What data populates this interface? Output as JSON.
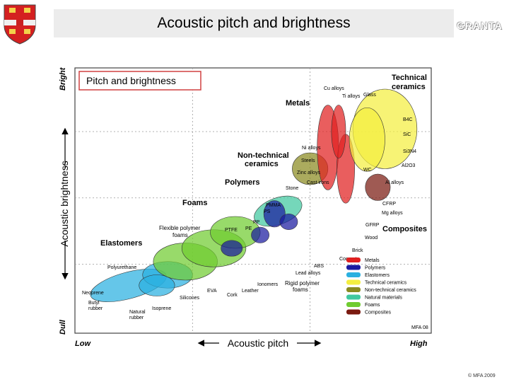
{
  "header": {
    "title": "Acoustic pitch and brightness",
    "logo_text": "GRANTA"
  },
  "footer": {
    "copyright": "© MFA 2009"
  },
  "chart_data": {
    "type": "bubble",
    "panel_title": "Pitch and brightness",
    "xlabel": "Acoustic pitch",
    "ylabel": "Acoustic brightness",
    "x_low": "Low",
    "x_high": "High",
    "y_low": "Dull",
    "y_high": "Bright",
    "version_tag": "MFA 08",
    "grid": true,
    "family_colors": {
      "Metals": "#e02020",
      "Polymers": "#1a1aa0",
      "Elastomers": "#2ab0e0",
      "Technical ceramics": "#f4ee40",
      "Non-technical ceramics": "#8a8a20",
      "Natural materials": "#40c8a0",
      "Foams": "#70cc30",
      "Composites": "#7a1a10"
    },
    "family_labels": [
      {
        "text": "Technical",
        "family": "Technical ceramics"
      },
      {
        "text": "ceramics",
        "family": "Technical ceramics"
      },
      {
        "text": "Metals",
        "family": "Metals"
      },
      {
        "text": "Non-technical",
        "family": "Non-technical ceramics"
      },
      {
        "text": "ceramics",
        "family": "Non-technical ceramics"
      },
      {
        "text": "Polymers",
        "family": "Polymers"
      },
      {
        "text": "Foams",
        "family": "Foams"
      },
      {
        "text": "Elastomers",
        "family": "Elastomers"
      },
      {
        "text": "Composites",
        "family": "Composites"
      }
    ],
    "material_labels": [
      "Cu alloys",
      "Ti alloys",
      "Glass",
      "B4C",
      "SiC",
      "Si3N4",
      "Al2O3",
      "Ni alloys",
      "Steels",
      "WC",
      "Zinc alloys",
      "Cast irons",
      "Al alloys",
      "Stone",
      "PMMA",
      "PS",
      "CFRP",
      "Mg alloys",
      "GFRP",
      "PP",
      "PE",
      "PTFE",
      "Wood",
      "Flexible polymer",
      "foams",
      "Brick",
      "Concrete",
      "ABS",
      "Lead alloys",
      "Polyurethane",
      "Ionomers",
      "Rigid polymer",
      "foams",
      "Neoprene",
      "EVA",
      "Cork",
      "Leather",
      "Butyl",
      "rubber",
      "Natural",
      "rubber",
      "Isoprene",
      "Silicones"
    ],
    "bubbles": [
      {
        "family": "Elastomers",
        "cx": 0.15,
        "cy": 0.18,
        "rx": 0.11,
        "ry": 0.05,
        "rot": -15
      },
      {
        "family": "Elastomers",
        "cx": 0.26,
        "cy": 0.22,
        "rx": 0.07,
        "ry": 0.05,
        "rot": 0
      },
      {
        "family": "Elastomers",
        "cx": 0.23,
        "cy": 0.18,
        "rx": 0.05,
        "ry": 0.04,
        "rot": 0
      },
      {
        "family": "Foams",
        "cx": 0.31,
        "cy": 0.27,
        "rx": 0.09,
        "ry": 0.07,
        "rot": 0
      },
      {
        "family": "Foams",
        "cx": 0.39,
        "cy": 0.32,
        "rx": 0.09,
        "ry": 0.07,
        "rot": 0
      },
      {
        "family": "Foams",
        "cx": 0.45,
        "cy": 0.38,
        "rx": 0.07,
        "ry": 0.06,
        "rot": 0
      },
      {
        "family": "Natural materials",
        "cx": 0.57,
        "cy": 0.46,
        "rx": 0.07,
        "ry": 0.05,
        "rot": -20
      },
      {
        "family": "Non-technical ceramics",
        "cx": 0.66,
        "cy": 0.62,
        "rx": 0.05,
        "ry": 0.06,
        "rot": 0
      },
      {
        "family": "Polymers",
        "cx": 0.44,
        "cy": 0.32,
        "rx": 0.03,
        "ry": 0.03,
        "rot": 0
      },
      {
        "family": "Polymers",
        "cx": 0.52,
        "cy": 0.37,
        "rx": 0.025,
        "ry": 0.03,
        "rot": 0
      },
      {
        "family": "Polymers",
        "cx": 0.56,
        "cy": 0.45,
        "rx": 0.03,
        "ry": 0.05,
        "rot": 0
      },
      {
        "family": "Polymers",
        "cx": 0.6,
        "cy": 0.42,
        "rx": 0.025,
        "ry": 0.03,
        "rot": 0
      },
      {
        "family": "Metals",
        "cx": 0.71,
        "cy": 0.7,
        "rx": 0.03,
        "ry": 0.16,
        "rot": 0
      },
      {
        "family": "Metals",
        "cx": 0.76,
        "cy": 0.62,
        "rx": 0.025,
        "ry": 0.13,
        "rot": 0
      },
      {
        "family": "Metals",
        "cx": 0.74,
        "cy": 0.76,
        "rx": 0.02,
        "ry": 0.1,
        "rot": 0
      },
      {
        "family": "Technical ceramics",
        "cx": 0.87,
        "cy": 0.77,
        "rx": 0.09,
        "ry": 0.15,
        "rot": 0
      },
      {
        "family": "Technical ceramics",
        "cx": 0.82,
        "cy": 0.73,
        "rx": 0.05,
        "ry": 0.12,
        "rot": 0
      },
      {
        "family": "Composites",
        "cx": 0.85,
        "cy": 0.55,
        "rx": 0.035,
        "ry": 0.05,
        "rot": 0
      }
    ]
  }
}
